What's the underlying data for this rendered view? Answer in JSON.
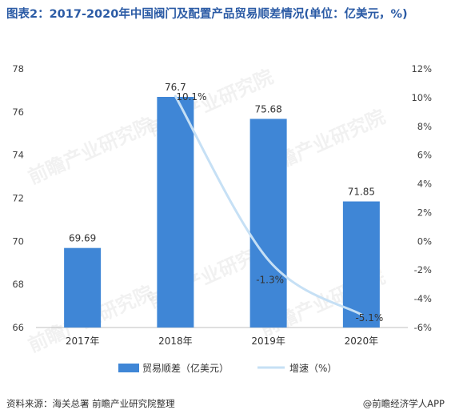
{
  "title": "图表2：2017-2020年中国阀门及配置产品贸易顺差情况(单位：亿美元，%)",
  "source": "资料来源：海关总署 前瞻产业研究院整理",
  "brand": "@前瞻经济学人APP",
  "watermark": "前瞻产业研究院",
  "chart_data": {
    "type": "bar",
    "categories": [
      "2017年",
      "2018年",
      "2019年",
      "2020年"
    ],
    "series": [
      {
        "name": "贸易顺差（亿美元）",
        "type": "bar",
        "axis": "left",
        "values": [
          69.69,
          76.7,
          75.68,
          71.85
        ],
        "labels": [
          "69.69",
          "76.7",
          "75.68",
          "71.85"
        ],
        "color": "#3f86d6"
      },
      {
        "name": "增速（%）",
        "type": "line",
        "axis": "right",
        "x": [
          "2018年",
          "2019年",
          "2020年"
        ],
        "values": [
          10.1,
          -1.3,
          -5.1
        ],
        "labels": [
          "10.1%",
          "-1.3%",
          "-5.1%"
        ],
        "color": "#c6e0f5"
      }
    ],
    "left_axis": {
      "ylim": [
        66,
        78
      ],
      "ticks": [
        "66",
        "68",
        "70",
        "72",
        "74",
        "76",
        "78"
      ]
    },
    "right_axis": {
      "ylim": [
        -6,
        12
      ],
      "ticks": [
        "-6%",
        "-4%",
        "-2%",
        "0%",
        "2%",
        "4%",
        "6%",
        "8%",
        "10%",
        "12%"
      ]
    },
    "grid": false,
    "legend": "bottom"
  }
}
